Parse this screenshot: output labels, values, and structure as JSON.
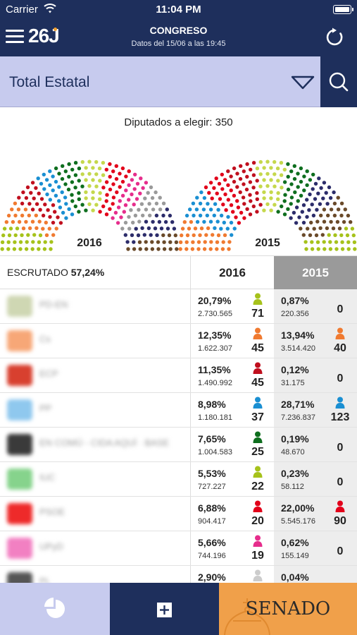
{
  "status_bar": {
    "carrier": "Carrier",
    "time": "11:04 PM"
  },
  "header": {
    "logo": "26J",
    "title": "CONGRESO",
    "subtitle": "Datos del 15/06 a las 19:45",
    "menu_icon": "hamburger-icon",
    "refresh_icon": "refresh-icon"
  },
  "region": {
    "label": "Total Estatal",
    "dropdown_icon": "triangle-down-icon",
    "search_icon": "search-icon"
  },
  "seats_caption": "Diputados a elegir: 350",
  "hemicycles": [
    {
      "label": "2016",
      "colors": [
        "#a6c21b",
        "#f07a30",
        "#c00f1e",
        "#1a8fd2",
        "#0e6e1e",
        "#c5d84c",
        "#e2001a",
        "#e62d8c",
        "#9a9a9a",
        "#2c2c6a",
        "#6a4a2a"
      ]
    },
    {
      "label": "2015",
      "colors": [
        "#f07a30",
        "#1a8fd2",
        "#e2001a",
        "#c00f1e",
        "#c5d84c",
        "#0e6e1e",
        "#2c2c6a",
        "#6a4a2a",
        "#a6c21b"
      ]
    }
  ],
  "table": {
    "scrutiny_label": "ESCRUTADO",
    "scrutiny_value": "57,24%",
    "col_2016": "2016",
    "col_2015": "2015",
    "rows": [
      {
        "logo_color": "#cfd7b3",
        "name": "PD-EN",
        "p16": "20,79%",
        "v16": "2.730.565",
        "s16": "71",
        "c16": "#a6c21b",
        "p15": "0,87%",
        "v15": "220.356",
        "s15": "0",
        "c15": ""
      },
      {
        "logo_color": "#f7a777",
        "name": "Cs",
        "p16": "12,35%",
        "v16": "1.622.307",
        "s16": "45",
        "c16": "#f07a30",
        "p15": "13,94%",
        "v15": "3.514.420",
        "s15": "40",
        "c15": "#f07a30"
      },
      {
        "logo_color": "#d8402f",
        "name": "ECP",
        "p16": "11,35%",
        "v16": "1.490.992",
        "s16": "45",
        "c16": "#c00f1e",
        "p15": "0,12%",
        "v15": "31.175",
        "s15": "0",
        "c15": ""
      },
      {
        "logo_color": "#8fc8ee",
        "name": "PP",
        "p16": "8,98%",
        "v16": "1.180.181",
        "s16": "37",
        "c16": "#1a8fd2",
        "p15": "28,71%",
        "v15": "7.236.837",
        "s15": "123",
        "c15": "#1a8fd2"
      },
      {
        "logo_color": "#3a3a3a",
        "name": "EN COMÚ - CIDA AQUÍ · BASE",
        "p16": "7,65%",
        "v16": "1.004.583",
        "s16": "25",
        "c16": "#0e6e1e",
        "p15": "0,19%",
        "v15": "48.670",
        "s15": "0",
        "c15": ""
      },
      {
        "logo_color": "#86d38c",
        "name": "IUC",
        "p16": "5,53%",
        "v16": "727.227",
        "s16": "22",
        "c16": "#a6c21b",
        "p15": "0,23%",
        "v15": "58.112",
        "s15": "0",
        "c15": ""
      },
      {
        "logo_color": "#ee2a2a",
        "name": "PSOE",
        "p16": "6,88%",
        "v16": "904.417",
        "s16": "20",
        "c16": "#e2001a",
        "p15": "22,00%",
        "v15": "5.545.176",
        "s15": "90",
        "c15": "#e2001a"
      },
      {
        "logo_color": "#f280c2",
        "name": "UPyD",
        "p16": "5,66%",
        "v16": "744.196",
        "s16": "19",
        "c16": "#e62d8c",
        "p15": "0,62%",
        "v15": "155.149",
        "s15": "0",
        "c15": ""
      },
      {
        "logo_color": "#555555",
        "name": "PL",
        "p16": "2,90%",
        "v16": "",
        "s16": "",
        "c16": "#cccccc",
        "p15": "0,04%",
        "v15": "",
        "s15": "",
        "c15": ""
      }
    ]
  },
  "tabs": {
    "charts_icon": "pie-chart-icon",
    "add_icon": "plus-square-icon",
    "senado_label": "SENADO"
  }
}
